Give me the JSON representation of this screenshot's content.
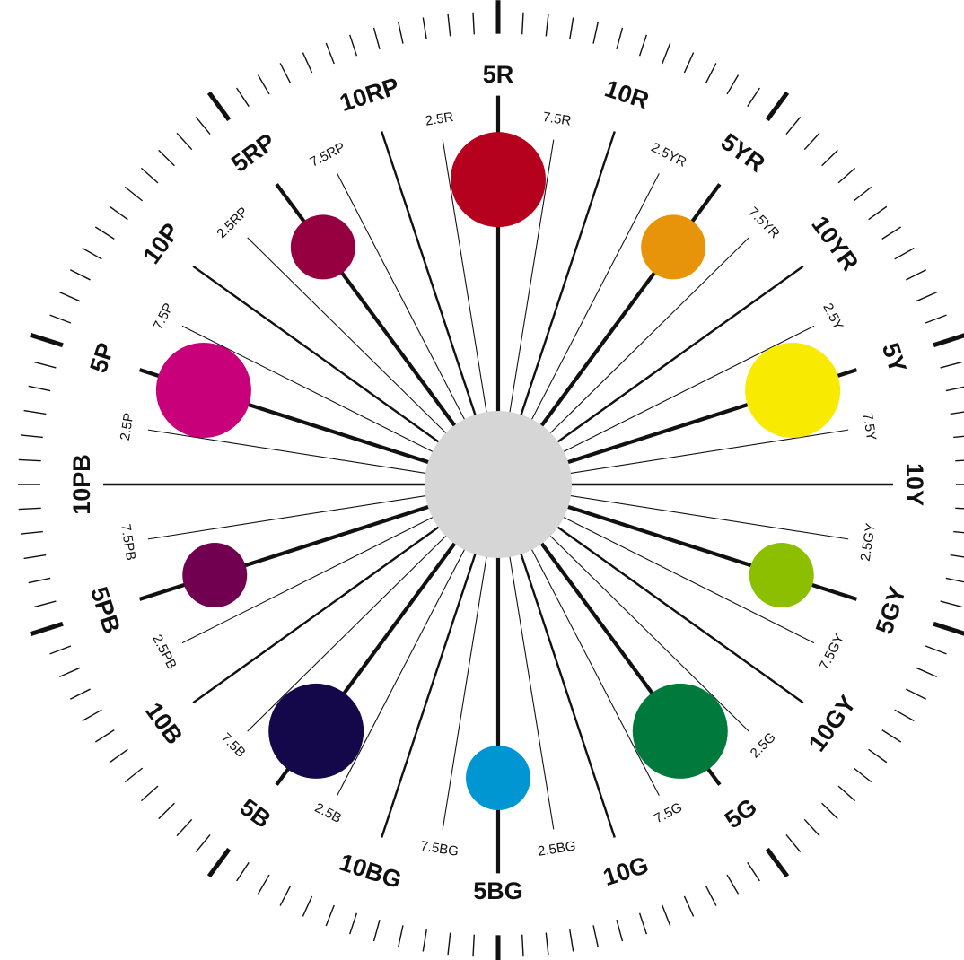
{
  "diagram": {
    "hues": [
      {
        "angle": 0,
        "label": "5R",
        "level": "major",
        "dot": {
          "color": "#b5001e",
          "size": "large"
        }
      },
      {
        "angle": 9,
        "label": "7.5R",
        "level": "minor"
      },
      {
        "angle": 18,
        "label": "10R",
        "level": "major"
      },
      {
        "angle": 27,
        "label": "2.5YR",
        "level": "minor"
      },
      {
        "angle": 36,
        "label": "5YR",
        "level": "major",
        "dot": {
          "color": "#e8940a",
          "size": "small"
        }
      },
      {
        "angle": 45,
        "label": "7.5YR",
        "level": "minor"
      },
      {
        "angle": 54,
        "label": "10YR",
        "level": "major"
      },
      {
        "angle": 63,
        "label": "2.5Y",
        "level": "minor"
      },
      {
        "angle": 72,
        "label": "5Y",
        "level": "major",
        "dot": {
          "color": "#f8ea00",
          "size": "large"
        }
      },
      {
        "angle": 81,
        "label": "7.5Y",
        "level": "minor"
      },
      {
        "angle": 90,
        "label": "10Y",
        "level": "major"
      },
      {
        "angle": 99,
        "label": "2.5GY",
        "level": "minor"
      },
      {
        "angle": 108,
        "label": "5GY",
        "level": "major",
        "dot": {
          "color": "#8cbf00",
          "size": "small"
        }
      },
      {
        "angle": 117,
        "label": "7.5GY",
        "level": "minor"
      },
      {
        "angle": 126,
        "label": "10GY",
        "level": "major"
      },
      {
        "angle": 135,
        "label": "2.5G",
        "level": "minor"
      },
      {
        "angle": 144,
        "label": "5G",
        "level": "major",
        "dot": {
          "color": "#007a3c",
          "size": "large"
        }
      },
      {
        "angle": 153,
        "label": "7.5G",
        "level": "minor"
      },
      {
        "angle": 162,
        "label": "10G",
        "level": "major"
      },
      {
        "angle": 171,
        "label": "2.5BG",
        "level": "minor"
      },
      {
        "angle": 180,
        "label": "5BG",
        "level": "major",
        "dot": {
          "color": "#0096d2",
          "size": "small"
        }
      },
      {
        "angle": 189,
        "label": "7.5BG",
        "level": "minor"
      },
      {
        "angle": 198,
        "label": "10BG",
        "level": "major"
      },
      {
        "angle": 207,
        "label": "2.5B",
        "level": "minor"
      },
      {
        "angle": 216,
        "label": "5B",
        "level": "major",
        "dot": {
          "color": "#15084a",
          "size": "large"
        }
      },
      {
        "angle": 225,
        "label": "7.5B",
        "level": "minor"
      },
      {
        "angle": 234,
        "label": "10B",
        "level": "major"
      },
      {
        "angle": 243,
        "label": "2.5PB",
        "level": "minor"
      },
      {
        "angle": 252,
        "label": "5PB",
        "level": "major",
        "dot": {
          "color": "#720050",
          "size": "small"
        }
      },
      {
        "angle": 261,
        "label": "7.5PB",
        "level": "minor"
      },
      {
        "angle": 270,
        "label": "10PB",
        "level": "major"
      },
      {
        "angle": 279,
        "label": "2.5P",
        "level": "minor"
      },
      {
        "angle": 288,
        "label": "5P",
        "level": "major",
        "dot": {
          "color": "#c8007a",
          "size": "large"
        }
      },
      {
        "angle": 297,
        "label": "7.5P",
        "level": "minor"
      },
      {
        "angle": 306,
        "label": "10P",
        "level": "major"
      },
      {
        "angle": 315,
        "label": "2.5RP",
        "level": "minor"
      },
      {
        "angle": 324,
        "label": "5RP",
        "level": "major",
        "dot": {
          "color": "#960040",
          "size": "small"
        }
      },
      {
        "angle": 333,
        "label": "7.5RP",
        "level": "minor"
      },
      {
        "angle": 342,
        "label": "10RP",
        "level": "major"
      },
      {
        "angle": 351,
        "label": "2.5R",
        "level": "minor"
      }
    ],
    "center_color": "#d6d6d6",
    "line_color": "#111111"
  }
}
